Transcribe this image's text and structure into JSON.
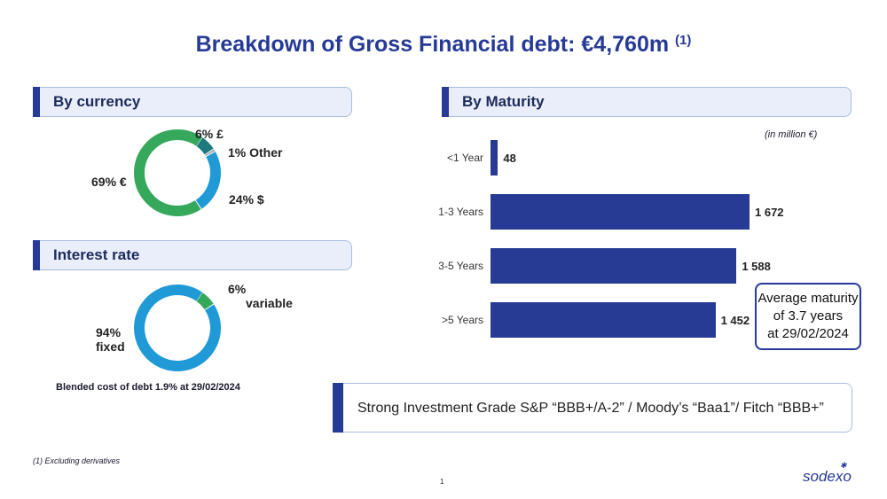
{
  "title": "Breakdown of Gross Financial debt: €4,760m",
  "title_note": "(1)",
  "currency": {
    "header": "By currency"
  },
  "interest": {
    "header": "Interest rate",
    "blended": "Blended cost of debt 1.9% at 29/02/2024"
  },
  "maturity": {
    "header": "By Maturity",
    "unit": "(in million €)"
  },
  "avg_maturity": [
    "Average maturity",
    "of 3.7 years",
    "at 29/02/2024"
  ],
  "rating": "Strong Investment Grade S&P “BBB+/A-2” / Moody’s “Baa1”/ Fitch “BBB+”",
  "footnote": "(1) Excluding derivatives",
  "page_number": "1",
  "logo": "sodexo",
  "chart_data": [
    {
      "type": "pie",
      "variant": "donut",
      "slices": [
        {
          "label": "6% £",
          "value": 6,
          "color": "#1f7a80"
        },
        {
          "label": "1% Other",
          "value": 1,
          "color": "#9aa5ab"
        },
        {
          "label": "24% $",
          "value": 24,
          "color": "#1f9ad6"
        },
        {
          "label": "69% €",
          "value": 69,
          "color": "#35a85c"
        }
      ]
    },
    {
      "type": "pie",
      "variant": "donut",
      "slices": [
        {
          "label": "6% variable",
          "value": 6,
          "color": "#35a85c"
        },
        {
          "label": "94% fixed",
          "value": 94,
          "color": "#1f9ad6"
        }
      ]
    },
    {
      "type": "bar",
      "orientation": "horizontal",
      "categories": [
        "<1 Year",
        "1-3 Years",
        "3-5 Years",
        ">5 Years"
      ],
      "values": [
        48,
        1672,
        1588,
        1452
      ],
      "value_labels": [
        "48",
        "1 672",
        "1 588",
        "1 452"
      ],
      "color": "#273a94"
    }
  ]
}
